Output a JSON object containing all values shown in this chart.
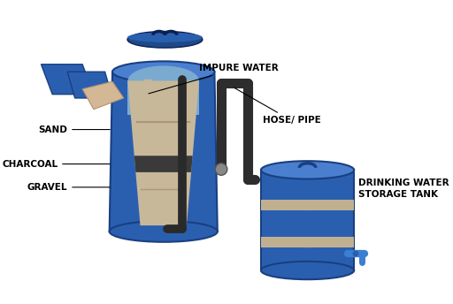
{
  "bg_color": "#ffffff",
  "blue": "#2a5fb0",
  "blue_dark": "#1a3f80",
  "blue_light": "#4a7fd0",
  "blue_inner": "#7aaad0",
  "tan": "#c8b89a",
  "tan_dark": "#b8a080",
  "charcoal": "#3a3a3a",
  "gravel": "#b8a888",
  "hose_color": "#2d2d2d",
  "hand_blue": "#2a5fb0",
  "hand_skin": "#d4b896",
  "skin_dark": "#b09070",
  "lid_color": "#2a5fb0",
  "lid_dark": "#1a3f80",
  "stripe": "#c0b090",
  "tap_color": "#3a7fd0",
  "tap_dark": "#2a5fb0",
  "label_fs": 7.5,
  "label_fw": "bold",
  "labels": {
    "impure_water": "IMPURE WATER",
    "hose_pipe": "HOSE/ PIPE",
    "sand": "SAND",
    "charcoal": "CHARCOAL",
    "gravel": "GRAVEL",
    "storage_tank": "DRINKING WATER\nSTORAGE TANK"
  }
}
